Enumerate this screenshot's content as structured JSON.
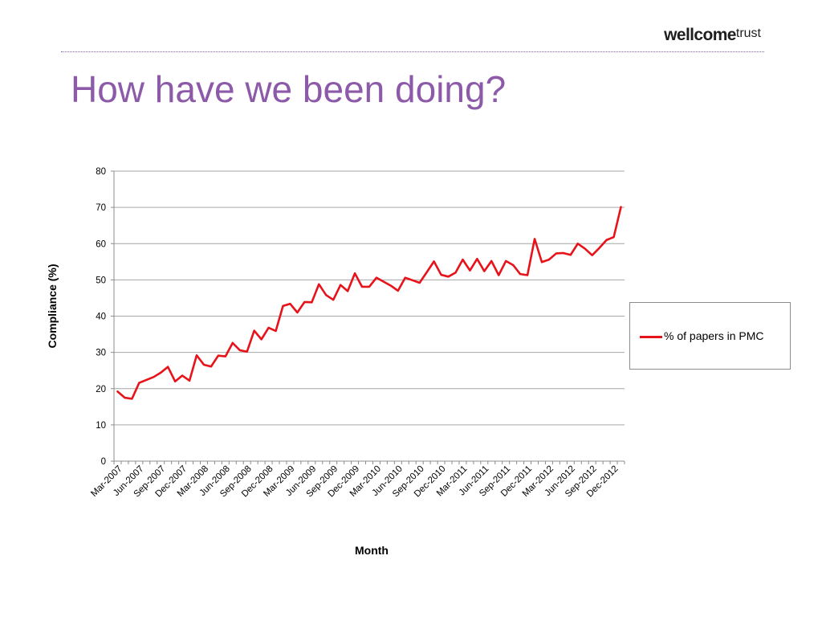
{
  "header": {
    "logo_bold": "wellcome",
    "logo_light": "trust",
    "title": "How have we been doing?"
  },
  "colors": {
    "title": "#8c5aa8",
    "divider": "#7d5bab",
    "series": "#e8131a",
    "grid": "#a6a6a6"
  },
  "chart_data": {
    "type": "line",
    "xlabel": "Month",
    "ylabel": "Compliance (%)",
    "ylim": [
      0,
      80
    ],
    "yticks": [
      0,
      10,
      20,
      30,
      40,
      50,
      60,
      70,
      80
    ],
    "grid": true,
    "legend_position": "right",
    "x": [
      "Mar-2007",
      "Apr-2007",
      "May-2007",
      "Jun-2007",
      "Jul-2007",
      "Aug-2007",
      "Sep-2007",
      "Oct-2007",
      "Nov-2007",
      "Dec-2007",
      "Jan-2008",
      "Feb-2008",
      "Mar-2008",
      "Apr-2008",
      "May-2008",
      "Jun-2008",
      "Jul-2008",
      "Aug-2008",
      "Sep-2008",
      "Oct-2008",
      "Nov-2008",
      "Dec-2008",
      "Jan-2009",
      "Feb-2009",
      "Mar-2009",
      "Apr-2009",
      "May-2009",
      "Jun-2009",
      "Jul-2009",
      "Aug-2009",
      "Sep-2009",
      "Oct-2009",
      "Nov-2009",
      "Dec-2009",
      "Jan-2010",
      "Feb-2010",
      "Mar-2010",
      "Apr-2010",
      "May-2010",
      "Jun-2010",
      "Jul-2010",
      "Aug-2010",
      "Sep-2010",
      "Oct-2010",
      "Nov-2010",
      "Dec-2010",
      "Jan-2011",
      "Feb-2011",
      "Mar-2011",
      "Apr-2011",
      "May-2011",
      "Jun-2011",
      "Jul-2011",
      "Aug-2011",
      "Sep-2011",
      "Oct-2011",
      "Nov-2011",
      "Dec-2011",
      "Jan-2012",
      "Feb-2012",
      "Mar-2012",
      "Apr-2012",
      "May-2012",
      "Jun-2012",
      "Jul-2012",
      "Aug-2012",
      "Sep-2012",
      "Oct-2012",
      "Nov-2012",
      "Dec-2012",
      "Jan-2013"
    ],
    "xtick_labels": [
      "Mar-2007",
      "Jun-2007",
      "Sep-2007",
      "Dec-2007",
      "Mar-2008",
      "Jun-2008",
      "Sep-2008",
      "Dec-2008",
      "Mar-2009",
      "Jun-2009",
      "Sep-2009",
      "Dec-2009",
      "Mar-2010",
      "Jun-2010",
      "Sep-2010",
      "Dec-2010",
      "Mar-2011",
      "Jun-2011",
      "Sep-2011",
      "Dec-2011",
      "Mar-2012",
      "Jun-2012",
      "Sep-2012",
      "Dec-2012"
    ],
    "series": [
      {
        "name": "% of papers in PMC",
        "color": "#e8131a",
        "values": [
          19.2,
          17.5,
          17.2,
          21.6,
          22.4,
          23.2,
          24.4,
          26.0,
          22.0,
          23.6,
          22.2,
          29.2,
          26.6,
          26.1,
          29.1,
          28.9,
          32.6,
          30.6,
          30.2,
          36.0,
          33.6,
          36.8,
          35.9,
          42.8,
          43.4,
          41.0,
          43.9,
          43.8,
          48.8,
          45.8,
          44.5,
          48.6,
          46.9,
          51.8,
          48.1,
          48.1,
          50.6,
          49.5,
          48.4,
          47.0,
          50.6,
          49.9,
          49.2,
          52.1,
          55.1,
          51.4,
          50.9,
          52.0,
          55.6,
          52.6,
          55.8,
          52.4,
          55.2,
          51.3,
          55.2,
          54.1,
          51.6,
          51.3,
          61.3,
          54.9,
          55.6,
          57.3,
          57.4,
          56.9,
          60.0,
          58.6,
          56.8,
          58.8,
          61.0,
          61.8,
          70.1
        ]
      }
    ]
  }
}
